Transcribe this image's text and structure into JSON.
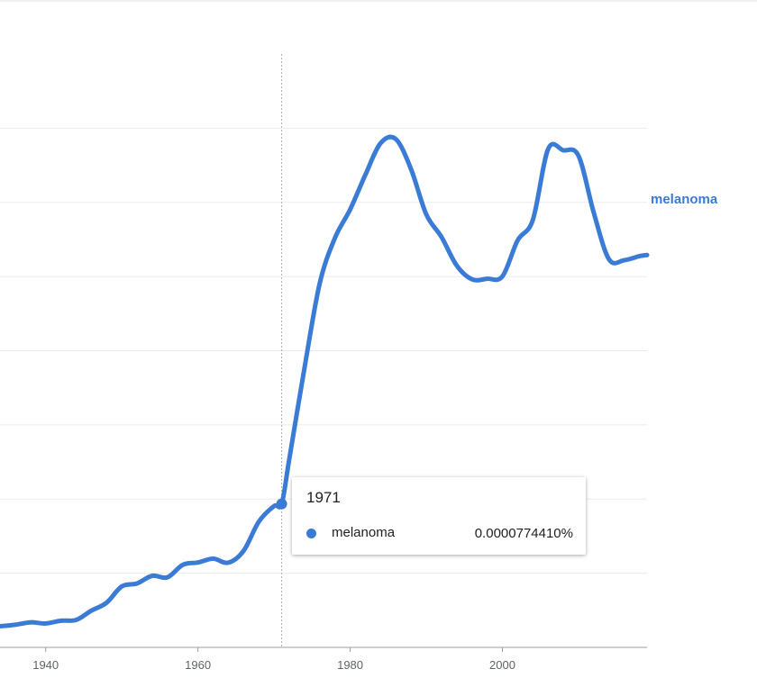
{
  "colors": {
    "line": "#3a7bd5",
    "grid": "#ebebeb",
    "axis": "#9e9e9e",
    "tick_text": "#5f6368",
    "hover_line": "#b0b0b0"
  },
  "chart_data": {
    "type": "line",
    "title": "",
    "xlabel": "",
    "ylabel": "",
    "xlim": [
      1934,
      2019
    ],
    "ylim": [
      0,
      0.00032
    ],
    "x_ticks": [
      1940,
      1960,
      1980,
      2000
    ],
    "y_gridlines": [
      0,
      4e-05,
      8e-05,
      0.00012,
      0.00016,
      0.0002,
      0.00024,
      0.00028
    ],
    "grid": true,
    "legend": "inline label at line end",
    "series": [
      {
        "name": "melanoma",
        "color": "#3a7bd5",
        "x": [
          1934,
          1936,
          1938,
          1940,
          1942,
          1944,
          1946,
          1948,
          1950,
          1952,
          1954,
          1956,
          1958,
          1960,
          1962,
          1964,
          1966,
          1968,
          1970,
          1971,
          1972,
          1974,
          1976,
          1978,
          1980,
          1982,
          1984,
          1986,
          1988,
          1990,
          1992,
          1994,
          1996,
          1998,
          2000,
          2002,
          2004,
          2006,
          2008,
          2010,
          2012,
          2014,
          2016,
          2018,
          2019
        ],
        "y": [
          1.14e-05,
          1.22e-05,
          1.35e-05,
          1.29e-05,
          1.44e-05,
          1.48e-05,
          1.98e-05,
          2.41e-05,
          3.29e-05,
          3.45e-05,
          3.86e-05,
          3.78e-05,
          4.45e-05,
          4.58e-05,
          4.78e-05,
          4.57e-05,
          5.21e-05,
          6.78e-05,
          7.62e-05,
          7.74e-05,
          0.0001015,
          0.0001507,
          0.0001963,
          0.0002208,
          0.0002362,
          0.0002549,
          0.0002719,
          0.0002741,
          0.0002579,
          0.0002335,
          0.0002213,
          0.0002059,
          0.0001985,
          0.0001988,
          0.0002001,
          0.0002195,
          0.0002306,
          0.0002687,
          0.0002681,
          0.0002651,
          0.0002344,
          0.0002093,
          0.0002088,
          0.000211,
          0.0002116
        ]
      }
    ],
    "hover": {
      "x": 1971,
      "year_label": "1971",
      "series_label": "melanoma",
      "value_label": "0.0000774410%"
    }
  }
}
